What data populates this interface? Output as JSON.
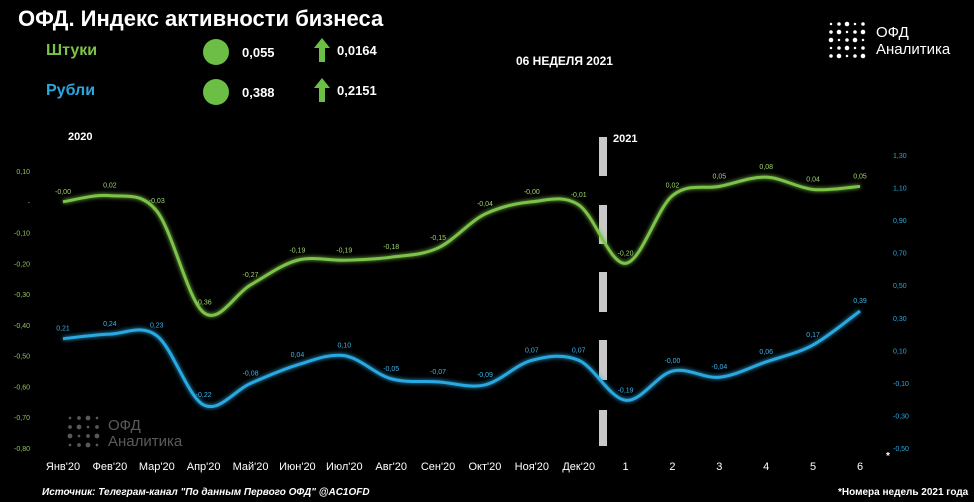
{
  "header": {
    "title": "ОФД. Индекс активности бизнеса",
    "week": "06 НЕДЕЛЯ 2021"
  },
  "legend": [
    {
      "label": "Штуки",
      "value": "0,055",
      "change": "0,0164",
      "color": "#7dc24a"
    },
    {
      "label": "Рубли",
      "value": "0,388",
      "change": "0,2151",
      "color": "#29a8e0"
    }
  ],
  "logo": {
    "line1": "ОФД",
    "line2": "Аналитика"
  },
  "watermark": {
    "line1": "ОФД",
    "line2": "Аналитика"
  },
  "footer": {
    "source": "Источник: Телеграм-канал \"По данным Первого ОФД\" @AC1OFD",
    "note": "*Номера недель 2021 года",
    "asterisk": "*"
  },
  "chart_data": {
    "type": "line",
    "year_labels": [
      "2020",
      "2021"
    ],
    "x": [
      "Янв'20",
      "Фев'20",
      "Мар'20",
      "Апр'20",
      "Май'20",
      "Июн'20",
      "Июл'20",
      "Авг'20",
      "Сен'20",
      "Окт'20",
      "Ноя'20",
      "Дек'20",
      "1",
      "2",
      "3",
      "4",
      "5",
      "6"
    ],
    "left_axis": {
      "ticks": [
        "0,10",
        "-",
        "-0,10",
        "-0,20",
        "-0,30",
        "-0,40",
        "-0,50",
        "-0,60",
        "-0,70",
        "-0,80"
      ],
      "ylim": [
        -0.8,
        0.1
      ]
    },
    "right_axis": {
      "ticks": [
        "1,30",
        "1,10",
        "0,90",
        "0,70",
        "0,50",
        "0,30",
        "0,10",
        "-0,10",
        "-0,30",
        "-0,50"
      ],
      "ylim": [
        -0.5,
        1.3
      ]
    },
    "series": [
      {
        "name": "Штуки",
        "axis": "left",
        "color": "#7dc24a",
        "values": [
          0.0,
          0.02,
          -0.03,
          -0.36,
          -0.27,
          -0.19,
          -0.19,
          -0.18,
          -0.15,
          -0.04,
          0.0,
          -0.01,
          -0.2,
          0.02,
          0.05,
          0.08,
          0.04,
          0.05
        ],
        "labels": [
          "-0,00",
          "0,02",
          "-0,03",
          "-0,36",
          "-0,27",
          "-0,19",
          "-0,19",
          "-0,18",
          "-0,15",
          "-0,04",
          "-0,00",
          "-0,01",
          "-0,20",
          "0,02",
          "0,05",
          "0,08",
          "0,04",
          "0,05"
        ]
      },
      {
        "name": "Рубли",
        "axis": "right",
        "color": "#29a8e0",
        "values": [
          0.21,
          0.24,
          0.23,
          -0.22,
          -0.08,
          0.04,
          0.1,
          -0.05,
          -0.07,
          -0.09,
          0.07,
          0.07,
          -0.19,
          -0.0,
          -0.04,
          0.06,
          0.17,
          0.39
        ],
        "labels": [
          "0,21",
          "0,24",
          "0,23",
          "-0,22",
          "-0,08",
          "0,04",
          "0,10",
          "-0,05",
          "-0,07",
          "-0,09",
          "0,07",
          "0,07",
          "-0,19",
          "-0,00",
          "-0,04",
          "0,06",
          "0,17",
          "0,39"
        ]
      }
    ]
  }
}
